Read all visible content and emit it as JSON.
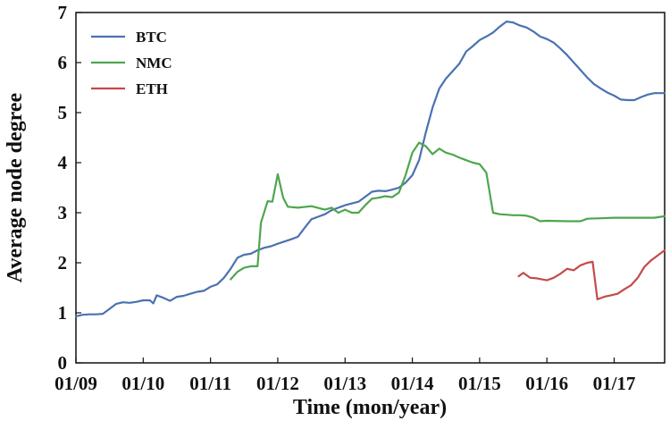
{
  "chart_data": {
    "type": "line",
    "xlabel": "Time (mon/year)",
    "ylabel": "Average node degree",
    "x_ticks": [
      "01/09",
      "01/10",
      "01/11",
      "01/12",
      "01/13",
      "01/14",
      "01/15",
      "01/16",
      "01/17"
    ],
    "y_ticks": [
      "0",
      "1",
      "2",
      "3",
      "4",
      "5",
      "6",
      "7"
    ],
    "xlim": [
      2009.0,
      2017.75
    ],
    "ylim": [
      0,
      7
    ],
    "grid": false,
    "legend_position": "top-left",
    "series": [
      {
        "name": "BTC",
        "color": "#4a72b0",
        "points": [
          [
            2009.0,
            0.93
          ],
          [
            2009.1,
            0.96
          ],
          [
            2009.2,
            0.97
          ],
          [
            2009.3,
            0.97
          ],
          [
            2009.4,
            0.98
          ],
          [
            2009.5,
            1.08
          ],
          [
            2009.6,
            1.18
          ],
          [
            2009.7,
            1.21
          ],
          [
            2009.8,
            1.2
          ],
          [
            2009.9,
            1.22
          ],
          [
            2010.0,
            1.25
          ],
          [
            2010.1,
            1.25
          ],
          [
            2010.15,
            1.19
          ],
          [
            2010.2,
            1.35
          ],
          [
            2010.3,
            1.3
          ],
          [
            2010.4,
            1.24
          ],
          [
            2010.5,
            1.32
          ],
          [
            2010.6,
            1.34
          ],
          [
            2010.7,
            1.38
          ],
          [
            2010.8,
            1.42
          ],
          [
            2010.9,
            1.44
          ],
          [
            2011.0,
            1.52
          ],
          [
            2011.1,
            1.57
          ],
          [
            2011.2,
            1.7
          ],
          [
            2011.3,
            1.88
          ],
          [
            2011.4,
            2.1
          ],
          [
            2011.5,
            2.16
          ],
          [
            2011.6,
            2.18
          ],
          [
            2011.7,
            2.25
          ],
          [
            2011.8,
            2.3
          ],
          [
            2011.9,
            2.33
          ],
          [
            2012.0,
            2.38
          ],
          [
            2012.2,
            2.47
          ],
          [
            2012.3,
            2.52
          ],
          [
            2012.4,
            2.7
          ],
          [
            2012.5,
            2.87
          ],
          [
            2012.6,
            2.92
          ],
          [
            2012.7,
            2.97
          ],
          [
            2012.8,
            3.05
          ],
          [
            2012.9,
            3.1
          ],
          [
            2013.0,
            3.15
          ],
          [
            2013.2,
            3.22
          ],
          [
            2013.3,
            3.32
          ],
          [
            2013.4,
            3.42
          ],
          [
            2013.5,
            3.44
          ],
          [
            2013.6,
            3.43
          ],
          [
            2013.7,
            3.46
          ],
          [
            2013.8,
            3.5
          ],
          [
            2013.9,
            3.6
          ],
          [
            2014.0,
            3.75
          ],
          [
            2014.1,
            4.05
          ],
          [
            2014.2,
            4.6
          ],
          [
            2014.3,
            5.1
          ],
          [
            2014.4,
            5.48
          ],
          [
            2014.5,
            5.68
          ],
          [
            2014.6,
            5.83
          ],
          [
            2014.7,
            5.98
          ],
          [
            2014.8,
            6.22
          ],
          [
            2014.9,
            6.33
          ],
          [
            2015.0,
            6.45
          ],
          [
            2015.1,
            6.52
          ],
          [
            2015.2,
            6.6
          ],
          [
            2015.3,
            6.72
          ],
          [
            2015.4,
            6.82
          ],
          [
            2015.5,
            6.8
          ],
          [
            2015.6,
            6.74
          ],
          [
            2015.7,
            6.7
          ],
          [
            2015.8,
            6.62
          ],
          [
            2015.9,
            6.52
          ],
          [
            2016.0,
            6.47
          ],
          [
            2016.1,
            6.4
          ],
          [
            2016.2,
            6.28
          ],
          [
            2016.3,
            6.15
          ],
          [
            2016.4,
            6.0
          ],
          [
            2016.5,
            5.85
          ],
          [
            2016.6,
            5.7
          ],
          [
            2016.7,
            5.57
          ],
          [
            2016.8,
            5.48
          ],
          [
            2016.9,
            5.4
          ],
          [
            2017.0,
            5.34
          ],
          [
            2017.1,
            5.26
          ],
          [
            2017.2,
            5.25
          ],
          [
            2017.3,
            5.25
          ],
          [
            2017.4,
            5.31
          ],
          [
            2017.5,
            5.36
          ],
          [
            2017.6,
            5.39
          ],
          [
            2017.75,
            5.39
          ]
        ]
      },
      {
        "name": "NMC",
        "color": "#4ea64e",
        "points": [
          [
            2011.3,
            1.67
          ],
          [
            2011.4,
            1.82
          ],
          [
            2011.5,
            1.9
          ],
          [
            2011.6,
            1.93
          ],
          [
            2011.7,
            1.93
          ],
          [
            2011.75,
            2.8
          ],
          [
            2011.85,
            3.23
          ],
          [
            2011.92,
            3.22
          ],
          [
            2012.0,
            3.77
          ],
          [
            2012.08,
            3.3
          ],
          [
            2012.15,
            3.12
          ],
          [
            2012.3,
            3.1
          ],
          [
            2012.5,
            3.13
          ],
          [
            2012.7,
            3.06
          ],
          [
            2012.8,
            3.1
          ],
          [
            2012.9,
            3.0
          ],
          [
            2013.0,
            3.06
          ],
          [
            2013.1,
            3.0
          ],
          [
            2013.2,
            3.0
          ],
          [
            2013.3,
            3.15
          ],
          [
            2013.4,
            3.28
          ],
          [
            2013.5,
            3.3
          ],
          [
            2013.6,
            3.33
          ],
          [
            2013.7,
            3.31
          ],
          [
            2013.8,
            3.4
          ],
          [
            2013.9,
            3.75
          ],
          [
            2014.0,
            4.2
          ],
          [
            2014.1,
            4.4
          ],
          [
            2014.2,
            4.33
          ],
          [
            2014.3,
            4.17
          ],
          [
            2014.4,
            4.28
          ],
          [
            2014.5,
            4.2
          ],
          [
            2014.6,
            4.16
          ],
          [
            2014.7,
            4.1
          ],
          [
            2014.8,
            4.05
          ],
          [
            2014.9,
            4.0
          ],
          [
            2015.0,
            3.97
          ],
          [
            2015.1,
            3.8
          ],
          [
            2015.2,
            3.0
          ],
          [
            2015.3,
            2.97
          ],
          [
            2015.4,
            2.96
          ],
          [
            2015.5,
            2.95
          ],
          [
            2015.6,
            2.95
          ],
          [
            2015.7,
            2.94
          ],
          [
            2015.8,
            2.9
          ],
          [
            2015.9,
            2.83
          ],
          [
            2016.0,
            2.84
          ],
          [
            2016.3,
            2.83
          ],
          [
            2016.5,
            2.83
          ],
          [
            2016.6,
            2.88
          ],
          [
            2016.8,
            2.89
          ],
          [
            2017.0,
            2.9
          ],
          [
            2017.4,
            2.9
          ],
          [
            2017.6,
            2.9
          ],
          [
            2017.75,
            2.93
          ]
        ]
      },
      {
        "name": "ETH",
        "color": "#c44a4a",
        "points": [
          [
            2015.58,
            1.73
          ],
          [
            2015.65,
            1.8
          ],
          [
            2015.75,
            1.7
          ],
          [
            2015.85,
            1.69
          ],
          [
            2016.0,
            1.65
          ],
          [
            2016.1,
            1.7
          ],
          [
            2016.2,
            1.78
          ],
          [
            2016.3,
            1.88
          ],
          [
            2016.4,
            1.85
          ],
          [
            2016.5,
            1.95
          ],
          [
            2016.6,
            2.0
          ],
          [
            2016.68,
            2.02
          ],
          [
            2016.75,
            1.27
          ],
          [
            2016.85,
            1.32
          ],
          [
            2016.95,
            1.35
          ],
          [
            2017.05,
            1.38
          ],
          [
            2017.15,
            1.47
          ],
          [
            2017.25,
            1.55
          ],
          [
            2017.35,
            1.7
          ],
          [
            2017.45,
            1.92
          ],
          [
            2017.55,
            2.05
          ],
          [
            2017.65,
            2.15
          ],
          [
            2017.75,
            2.25
          ]
        ]
      }
    ]
  }
}
